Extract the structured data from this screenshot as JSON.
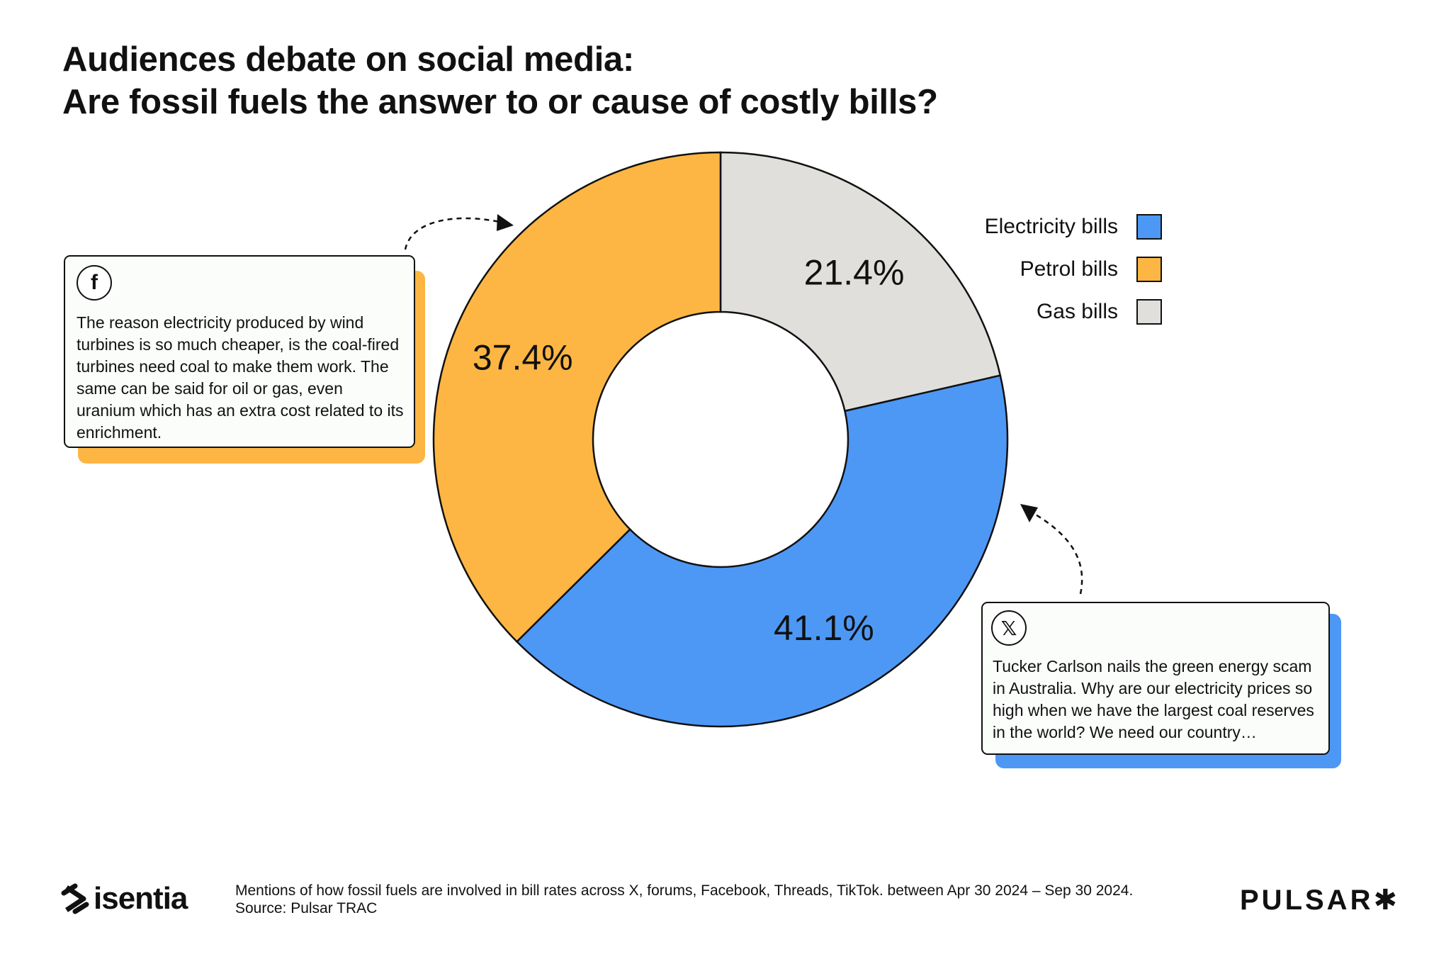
{
  "title": {
    "line1": "Audiences debate on social media:",
    "line2": "Are fossil fuels the answer to or cause of costly bills?"
  },
  "chart_data": {
    "type": "pie",
    "variant": "donut",
    "title": "Audiences debate on social media: Are fossil fuels the answer to or cause of costly bills?",
    "categories": [
      "Electricity bills",
      "Petrol bills",
      "Gas bills"
    ],
    "values": [
      41.1,
      37.4,
      21.4
    ],
    "labels": [
      "41.1%",
      "37.4%",
      "21.4%"
    ],
    "colors": [
      "#4d98f5",
      "#fdb643",
      "#e0dfdb"
    ],
    "legend_position": "top-right"
  },
  "legend": {
    "items": [
      {
        "label": "Electricity bills",
        "color": "#4d98f5"
      },
      {
        "label": "Petrol bills",
        "color": "#fdb643"
      },
      {
        "label": "Gas bills",
        "color": "#e0dfdb"
      }
    ]
  },
  "cards": {
    "facebook": {
      "icon": "facebook-icon",
      "icon_glyph": "f",
      "text": "The reason electricity produced by wind turbines is so much cheaper, is the coal-fired turbines need coal to make them work.  The same can be said for oil or gas, even uranium which has an extra cost related to its enrichment.",
      "shadow_color": "#fdb643"
    },
    "x": {
      "icon": "x-logo-icon",
      "icon_glyph": "𝕏",
      "text": "Tucker Carlson nails the green energy scam in Australia. Why are our electricity prices so high when we have the largest coal reserves in the world? We need our country…",
      "shadow_color": "#4d98f5"
    }
  },
  "footer": {
    "note": "Mentions of how fossil fuels are involved in bill rates across X, forums, Facebook, Threads, TikTok. between Apr 30 2024 – Sep 30 2024. Source: Pulsar TRAC",
    "brand_left": "isentia",
    "brand_right": "PULSAR✱"
  }
}
